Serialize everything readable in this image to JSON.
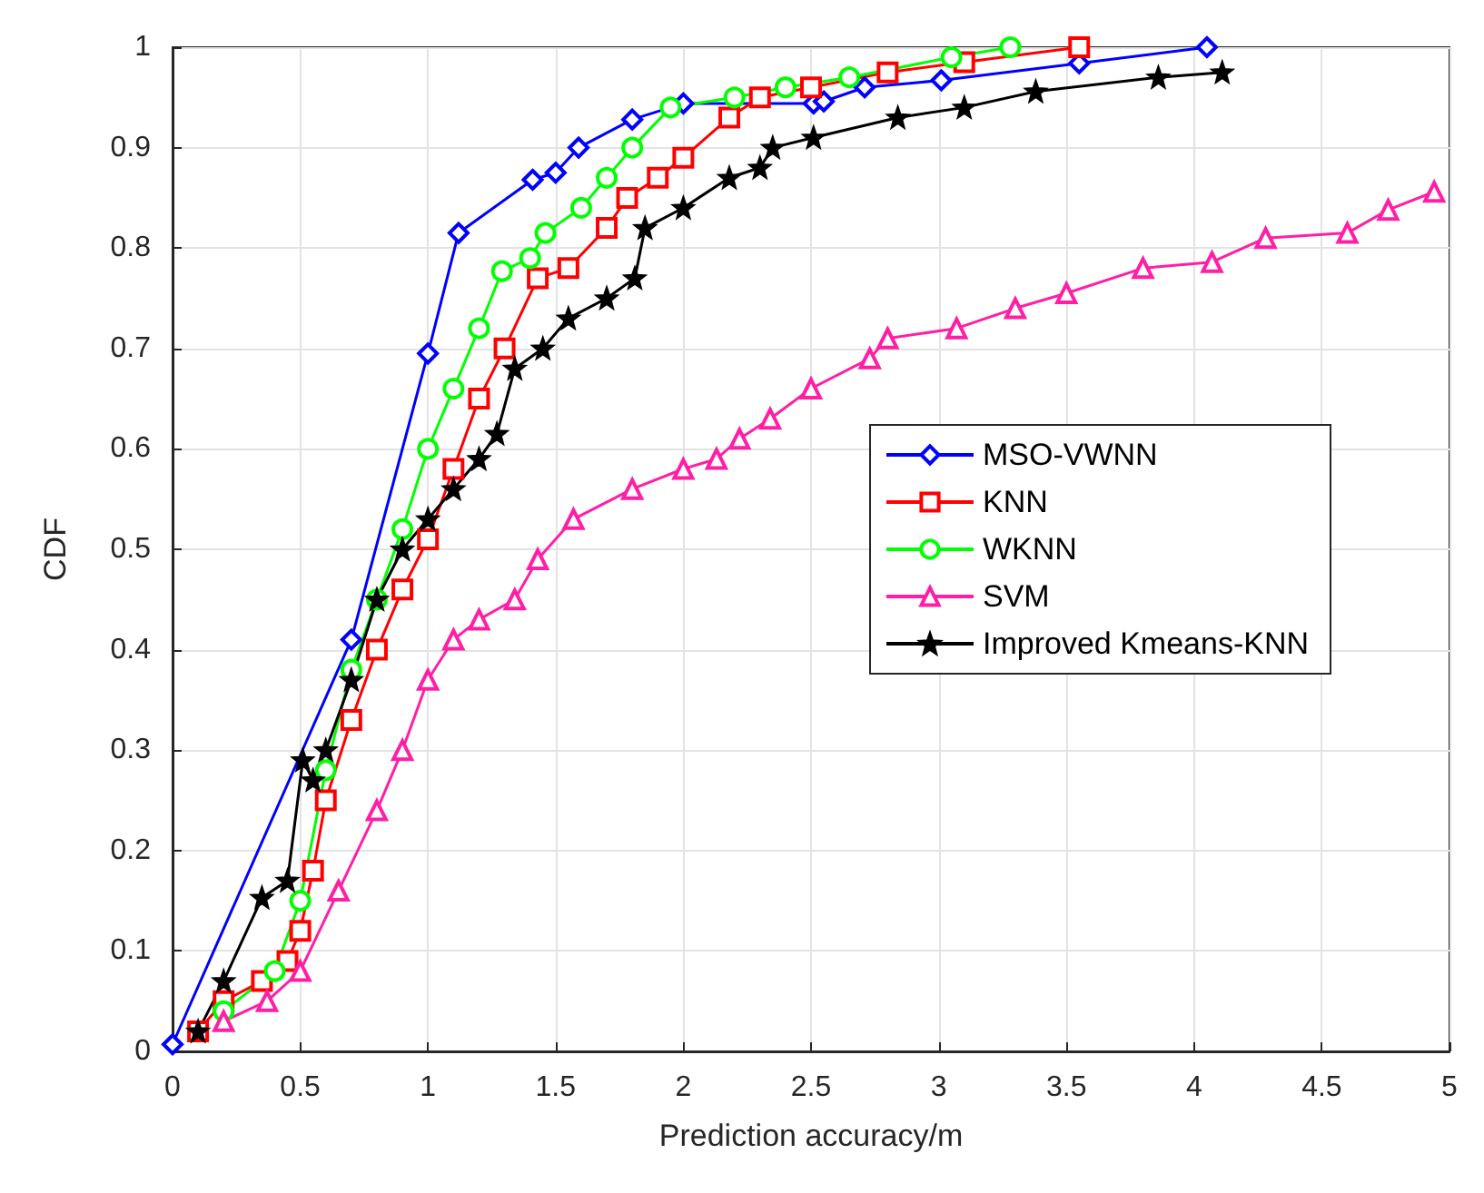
{
  "chart_data": {
    "type": "line",
    "xlabel": "Prediction accuracy/m",
    "ylabel": "CDF",
    "xlim": [
      0,
      5
    ],
    "ylim": [
      0,
      1
    ],
    "xticks": [
      0,
      0.5,
      1,
      1.5,
      2,
      2.5,
      3,
      3.5,
      4,
      4.5,
      5
    ],
    "yticks": [
      0,
      0.1,
      0.2,
      0.3,
      0.4,
      0.5,
      0.6,
      0.7,
      0.8,
      0.9,
      1
    ],
    "grid": true,
    "legend": "right",
    "line_style": "solid",
    "series": [
      {
        "name": "MSO-VWNN",
        "color": "#0000ff",
        "marker": "diamond",
        "x": [
          0,
          0.7,
          1.0,
          1.12,
          1.41,
          1.5,
          1.59,
          1.8,
          2.0,
          2.51,
          2.55,
          2.71,
          3.01,
          3.55,
          4.05
        ],
        "values": [
          0.007,
          0.41,
          0.695,
          0.815,
          0.868,
          0.875,
          0.9,
          0.928,
          0.944,
          0.944,
          0.946,
          0.96,
          0.967,
          0.984,
          1.0
        ]
      },
      {
        "name": "KNN",
        "color": "#ff0000",
        "marker": "square",
        "x": [
          0.1,
          0.2,
          0.35,
          0.45,
          0.5,
          0.55,
          0.6,
          0.7,
          0.8,
          0.9,
          1.0,
          1.1,
          1.2,
          1.3,
          1.43,
          1.55,
          1.7,
          1.78,
          1.9,
          2.0,
          2.18,
          2.3,
          2.5,
          2.8,
          3.1,
          3.55
        ],
        "values": [
          0.02,
          0.05,
          0.07,
          0.09,
          0.12,
          0.18,
          0.25,
          0.33,
          0.4,
          0.46,
          0.51,
          0.58,
          0.65,
          0.7,
          0.77,
          0.78,
          0.82,
          0.85,
          0.87,
          0.89,
          0.93,
          0.95,
          0.96,
          0.975,
          0.985,
          1.0
        ]
      },
      {
        "name": "WKNN",
        "color": "#00ff00",
        "marker": "circle",
        "x": [
          0.2,
          0.4,
          0.5,
          0.6,
          0.7,
          0.8,
          0.9,
          1.0,
          1.1,
          1.2,
          1.29,
          1.4,
          1.46,
          1.6,
          1.7,
          1.8,
          1.95,
          2.2,
          2.4,
          2.65,
          3.05,
          3.28
        ],
        "values": [
          0.04,
          0.08,
          0.15,
          0.28,
          0.38,
          0.45,
          0.52,
          0.6,
          0.66,
          0.72,
          0.777,
          0.79,
          0.815,
          0.84,
          0.87,
          0.9,
          0.94,
          0.95,
          0.96,
          0.97,
          0.99,
          1.0
        ]
      },
      {
        "name": "SVM",
        "color": "#ff1fa5",
        "marker": "triangle",
        "x": [
          0.2,
          0.37,
          0.5,
          0.65,
          0.8,
          0.9,
          1.0,
          1.1,
          1.2,
          1.34,
          1.43,
          1.57,
          1.8,
          2.0,
          2.13,
          2.22,
          2.34,
          2.5,
          2.73,
          2.8,
          3.07,
          3.3,
          3.5,
          3.8,
          4.07,
          4.28,
          4.6,
          4.76,
          4.94
        ],
        "values": [
          0.03,
          0.05,
          0.08,
          0.16,
          0.24,
          0.3,
          0.37,
          0.41,
          0.43,
          0.45,
          0.49,
          0.53,
          0.56,
          0.58,
          0.59,
          0.61,
          0.63,
          0.66,
          0.69,
          0.71,
          0.72,
          0.74,
          0.755,
          0.78,
          0.786,
          0.81,
          0.815,
          0.838,
          0.856
        ]
      },
      {
        "name": "Improved Kmeans-KNN",
        "color": "#000000",
        "marker": "star",
        "x": [
          0.1,
          0.2,
          0.35,
          0.45,
          0.51,
          0.55,
          0.6,
          0.7,
          0.8,
          0.9,
          1.0,
          1.1,
          1.2,
          1.27,
          1.34,
          1.45,
          1.55,
          1.7,
          1.81,
          1.85,
          2.0,
          2.18,
          2.3,
          2.35,
          2.51,
          2.84,
          3.1,
          3.38,
          3.86,
          4.11
        ],
        "values": [
          0.02,
          0.07,
          0.153,
          0.17,
          0.29,
          0.27,
          0.3,
          0.37,
          0.45,
          0.5,
          0.53,
          0.56,
          0.59,
          0.615,
          0.68,
          0.7,
          0.73,
          0.75,
          0.77,
          0.82,
          0.84,
          0.87,
          0.88,
          0.9,
          0.91,
          0.93,
          0.94,
          0.956,
          0.97,
          0.975
        ]
      }
    ]
  }
}
